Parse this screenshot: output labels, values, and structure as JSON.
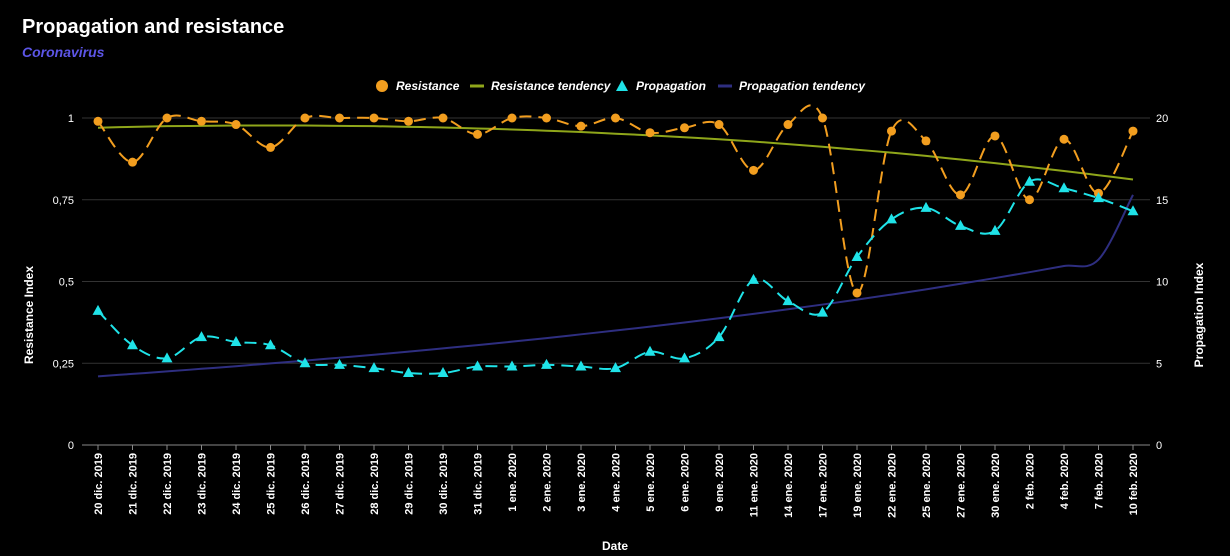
{
  "title": "Propagation and resistance",
  "subtitle": "Coronavirus",
  "chart_data": {
    "type": "line",
    "xlabel": "Date",
    "ylabel_left": "Resistance Index",
    "ylabel_right": "Propagation Index",
    "ylim_left": [
      0,
      1
    ],
    "ylim_right": [
      0,
      20
    ],
    "yticks_left": [
      "0",
      "0,25",
      "0,5",
      "0,75",
      "1"
    ],
    "yticks_right": [
      "0",
      "5",
      "10",
      "15",
      "20"
    ],
    "grid": true,
    "legend_position": "top",
    "categories": [
      "20 dic. 2019",
      "21 dic. 2019",
      "22 dic. 2019",
      "23 dic. 2019",
      "24 dic. 2019",
      "25 dic. 2019",
      "26 dic. 2019",
      "27 dic. 2019",
      "28 dic. 2019",
      "29 dic. 2019",
      "30 dic. 2019",
      "31 dic. 2019",
      "1 ene. 2020",
      "2 ene. 2020",
      "3 ene. 2020",
      "4 ene. 2020",
      "5 ene. 2020",
      "6 ene. 2020",
      "9 ene. 2020",
      "11 ene. 2020",
      "14 ene. 2020",
      "17 ene. 2020",
      "19 ene. 2020",
      "22 ene. 2020",
      "25 ene. 2020",
      "27 ene. 2020",
      "30 ene. 2020",
      "2 feb. 2020",
      "4 feb. 2020",
      "7 feb. 2020",
      "10 feb. 2020"
    ],
    "series": [
      {
        "name": "Resistance",
        "axis": "left",
        "color": "#f29e1f",
        "marker": "circle",
        "style": "dashed",
        "values": [
          0.99,
          0.865,
          1.0,
          0.99,
          0.98,
          0.91,
          1.0,
          1.0,
          1.0,
          0.99,
          1.0,
          0.95,
          1.0,
          1.0,
          0.975,
          1.0,
          0.955,
          0.97,
          0.98,
          0.84,
          0.98,
          1.0,
          0.465,
          0.96,
          0.93,
          0.765,
          0.945,
          0.75,
          0.935,
          0.77,
          0.96
        ]
      },
      {
        "name": "Resistance tendency",
        "axis": "left",
        "color": "#8fa61a",
        "marker": "none",
        "style": "solid",
        "values": [
          0.97,
          0.973,
          0.975,
          0.976,
          0.977,
          0.977,
          0.977,
          0.976,
          0.975,
          0.973,
          0.971,
          0.968,
          0.965,
          0.961,
          0.957,
          0.952,
          0.947,
          0.941,
          0.935,
          0.928,
          0.92,
          0.912,
          0.903,
          0.894,
          0.884,
          0.873,
          0.862,
          0.85,
          0.838,
          0.825,
          0.812
        ]
      },
      {
        "name": "Propagation",
        "axis": "right",
        "color": "#1fe3e8",
        "marker": "triangle",
        "style": "dashed",
        "values": [
          8.2,
          6.1,
          5.3,
          6.6,
          6.3,
          6.1,
          5.0,
          4.9,
          4.7,
          4.4,
          4.4,
          4.8,
          4.8,
          4.9,
          4.8,
          4.7,
          5.7,
          5.3,
          6.6,
          10.1,
          8.8,
          8.1,
          11.5,
          13.8,
          14.5,
          13.4,
          13.1,
          16.1,
          15.7,
          15.1,
          14.3
        ]
      },
      {
        "name": "Propagation tendency",
        "axis": "right",
        "color": "#2e2e80",
        "marker": "none",
        "style": "solid",
        "values": [
          4.2,
          4.35,
          4.5,
          4.66,
          4.82,
          4.99,
          5.16,
          5.34,
          5.52,
          5.71,
          5.91,
          6.11,
          6.32,
          6.54,
          6.77,
          7.0,
          7.24,
          7.49,
          7.75,
          8.02,
          8.3,
          8.59,
          8.89,
          9.2,
          9.52,
          9.86,
          10.21,
          10.57,
          10.95,
          11.34,
          15.3
        ]
      }
    ]
  }
}
